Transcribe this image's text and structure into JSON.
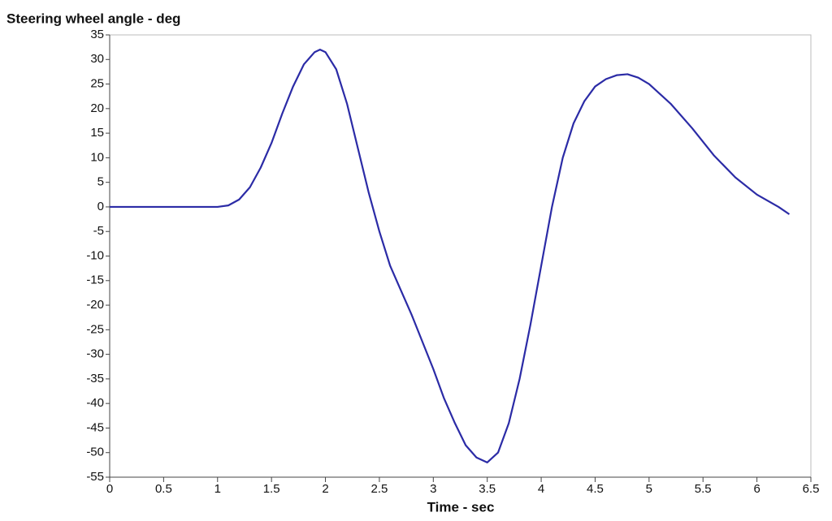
{
  "chart_data": {
    "type": "line",
    "title": "Steering wheel angle - deg",
    "x_label": "Time - sec",
    "x": [
      0,
      0.5,
      1.0,
      1.1,
      1.2,
      1.3,
      1.4,
      1.5,
      1.6,
      1.7,
      1.8,
      1.9,
      1.95,
      2.0,
      2.1,
      2.2,
      2.3,
      2.4,
      2.5,
      2.6,
      2.7,
      2.8,
      2.9,
      3.0,
      3.1,
      3.2,
      3.3,
      3.4,
      3.5,
      3.6,
      3.7,
      3.8,
      3.9,
      4.0,
      4.1,
      4.2,
      4.3,
      4.4,
      4.5,
      4.6,
      4.7,
      4.8,
      4.9,
      5.0,
      5.2,
      5.4,
      5.6,
      5.8,
      6.0,
      6.2,
      6.3
    ],
    "series": [
      {
        "name": "Steering wheel angle",
        "color": "#2b2ba6",
        "values": [
          0,
          0,
          0,
          0.3,
          1.5,
          4,
          8,
          13,
          19,
          24.5,
          29,
          31.5,
          32,
          31.5,
          28,
          21,
          12,
          3,
          -5,
          -12,
          -17,
          -22,
          -27.5,
          -33,
          -39,
          -44,
          -48.5,
          -51,
          -52,
          -50,
          -44,
          -35,
          -24,
          -12,
          0,
          10,
          17,
          21.5,
          24.5,
          26,
          26.8,
          27,
          26.3,
          25,
          21,
          16,
          10.5,
          6,
          2.5,
          0,
          -1.5
        ]
      }
    ],
    "xlim": [
      0,
      6.5
    ],
    "ylim": [
      -55,
      35
    ],
    "xticks": [
      0,
      0.5,
      1,
      1.5,
      2,
      2.5,
      3,
      3.5,
      4,
      4.5,
      5,
      5.5,
      6,
      6.5
    ],
    "yticks": [
      -55,
      -50,
      -45,
      -40,
      -35,
      -30,
      -25,
      -20,
      -15,
      -10,
      -5,
      0,
      5,
      10,
      15,
      20,
      25,
      30,
      35
    ],
    "grid": false
  }
}
